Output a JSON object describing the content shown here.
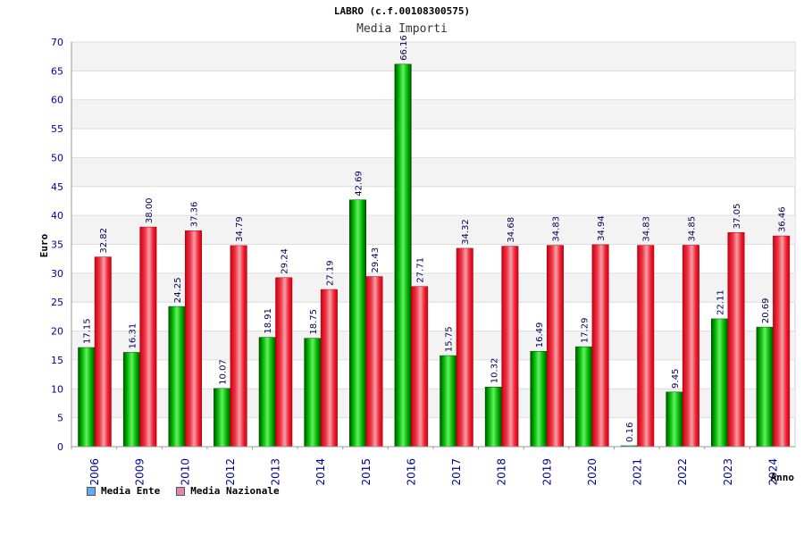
{
  "chart_data": {
    "type": "bar",
    "title": "LABRO (c.f.00108300575)",
    "subtitle": "Media Importi",
    "xlabel": "Anno",
    "ylabel": "Euro",
    "ylim": [
      0,
      70
    ],
    "ytick_step": 5,
    "grid": true,
    "legend_position": "bottom-left",
    "categories": [
      "2006",
      "2009",
      "2010",
      "2012",
      "2013",
      "2014",
      "2015",
      "2016",
      "2017",
      "2018",
      "2019",
      "2020",
      "2021",
      "2022",
      "2023",
      "2024"
    ],
    "series": [
      {
        "name": "Media Ente",
        "color": "#00aa00",
        "legend_color": "#66aaee",
        "values": [
          17.15,
          16.31,
          24.25,
          10.07,
          18.91,
          18.75,
          42.69,
          66.16,
          15.75,
          10.32,
          16.49,
          17.29,
          0.16,
          9.45,
          22.11,
          20.69
        ],
        "labels": [
          "17.15",
          "16.31",
          "24.25",
          "10.07",
          "18.91",
          "18.75",
          "42.69",
          "66.16",
          "15.75",
          "10.32",
          "16.49",
          "17.29",
          "0.16",
          "9.45",
          "22.11",
          "20.69"
        ]
      },
      {
        "name": "Media Nazionale",
        "color": "#ee1122",
        "legend_color": "#dd88aa",
        "values": [
          32.82,
          38.0,
          37.36,
          34.79,
          29.24,
          27.19,
          29.43,
          27.71,
          34.32,
          34.68,
          34.83,
          34.94,
          34.83,
          34.85,
          37.05,
          36.46
        ],
        "labels": [
          "32.82",
          "38.00",
          "37.36",
          "34.79",
          "29.24",
          "27.19",
          "29.43",
          "27.71",
          "34.32",
          "34.68",
          "34.83",
          "34.94",
          "34.83",
          "34.85",
          "37.05",
          "36.46"
        ]
      }
    ]
  }
}
